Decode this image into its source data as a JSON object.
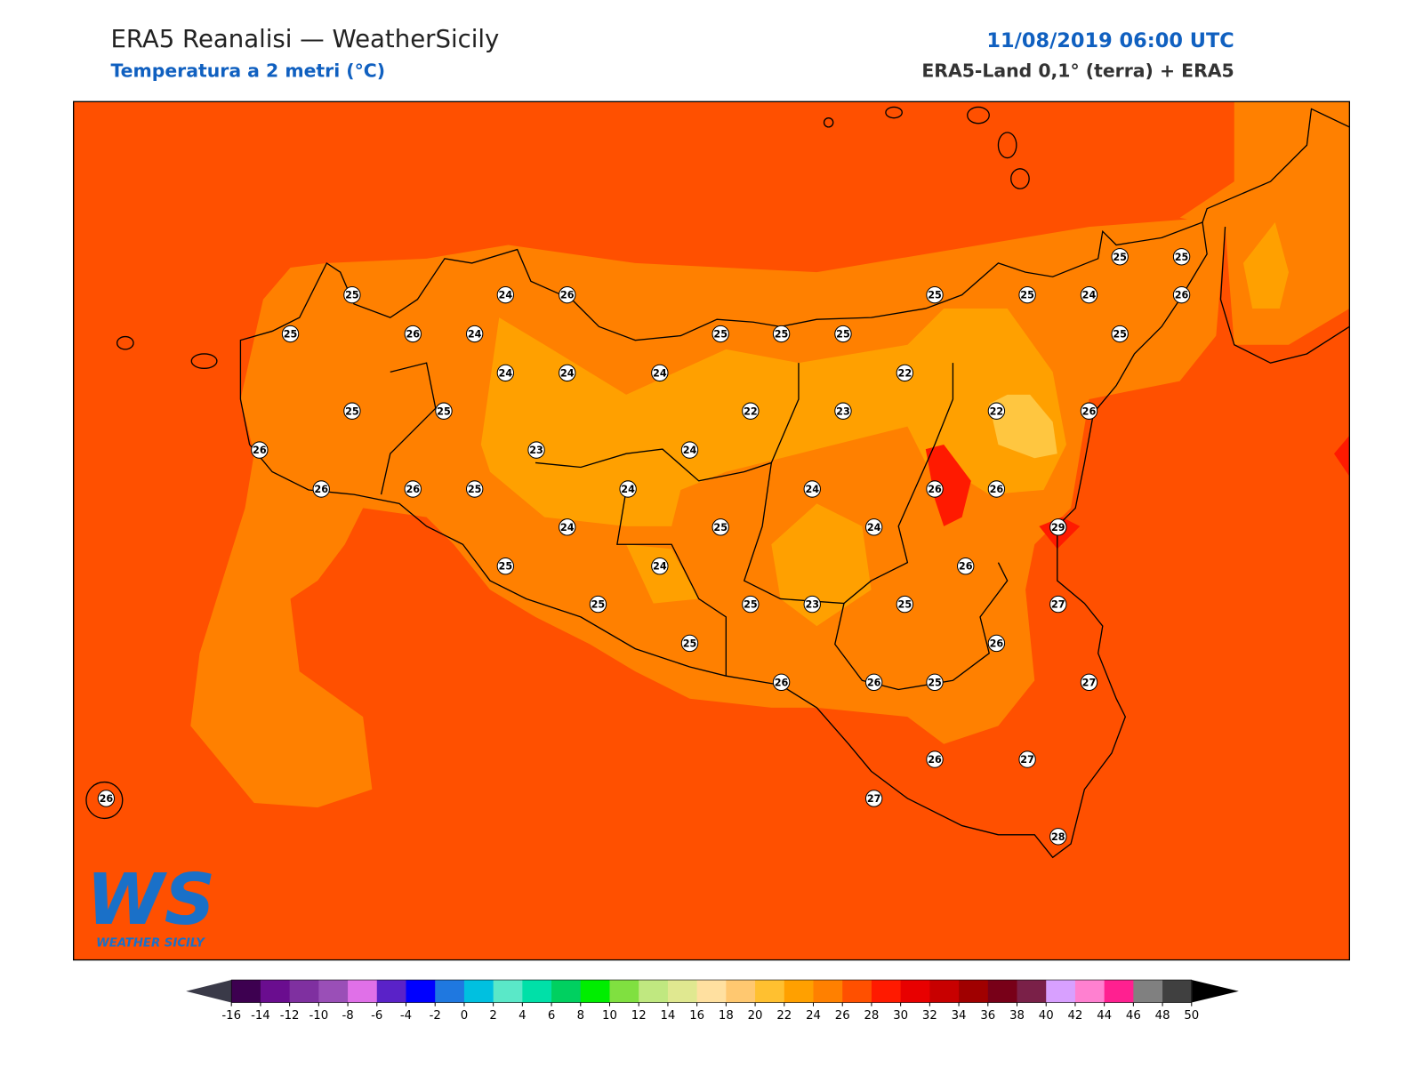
{
  "header": {
    "title": "ERA5 Reanalisi — WeatherSicily",
    "subtitle": "Temperatura a 2 metri (°C)",
    "date": "11/08/2019 06:00 UTC",
    "source": "ERA5-Land 0,1° (terra) + ERA5"
  },
  "logo": {
    "mark": "WS",
    "name": "WEATHER SICILY"
  },
  "stations": [
    25,
    24,
    26,
    25,
    26,
    24,
    24,
    24,
    24,
    25,
    25,
    26,
    23,
    26,
    26,
    25,
    25,
    25,
    25,
    25,
    25,
    24,
    25,
    25,
    26,
    25,
    22,
    22,
    23,
    22,
    26,
    24,
    24,
    24,
    26,
    26,
    24,
    25,
    24,
    29,
    25,
    24,
    26,
    25,
    25,
    23,
    25,
    27,
    25,
    26,
    26,
    26,
    25,
    27,
    26,
    27,
    27,
    28,
    26
  ],
  "colorbar": {
    "ticks": [
      -16,
      -14,
      -12,
      -10,
      -8,
      -6,
      -4,
      -2,
      0,
      2,
      4,
      6,
      8,
      10,
      12,
      14,
      16,
      18,
      20,
      22,
      24,
      26,
      28,
      30,
      32,
      34,
      36,
      38,
      40,
      42,
      44,
      46,
      48,
      50
    ],
    "colors": [
      "#3d0050",
      "#6a0d8f",
      "#7f30a0",
      "#9a4fb7",
      "#e070e8",
      "#5a22c8",
      "#0000ff",
      "#1f78e0",
      "#00c0e0",
      "#5ae8c8",
      "#00e0a8",
      "#00d060",
      "#00ee00",
      "#80e040",
      "#c0e880",
      "#e0e890",
      "#ffe0a0",
      "#ffc870",
      "#ffc030",
      "#ffa000",
      "#ff8000",
      "#ff5000",
      "#ff1a00",
      "#e80000",
      "#c80000",
      "#a00000",
      "#780018",
      "#7a2048",
      "#d8a0ff",
      "#ff80d0",
      "#ff2090",
      "#808080",
      "#404040"
    ],
    "under_color": "#3a3a48",
    "over_color": "#000000"
  }
}
